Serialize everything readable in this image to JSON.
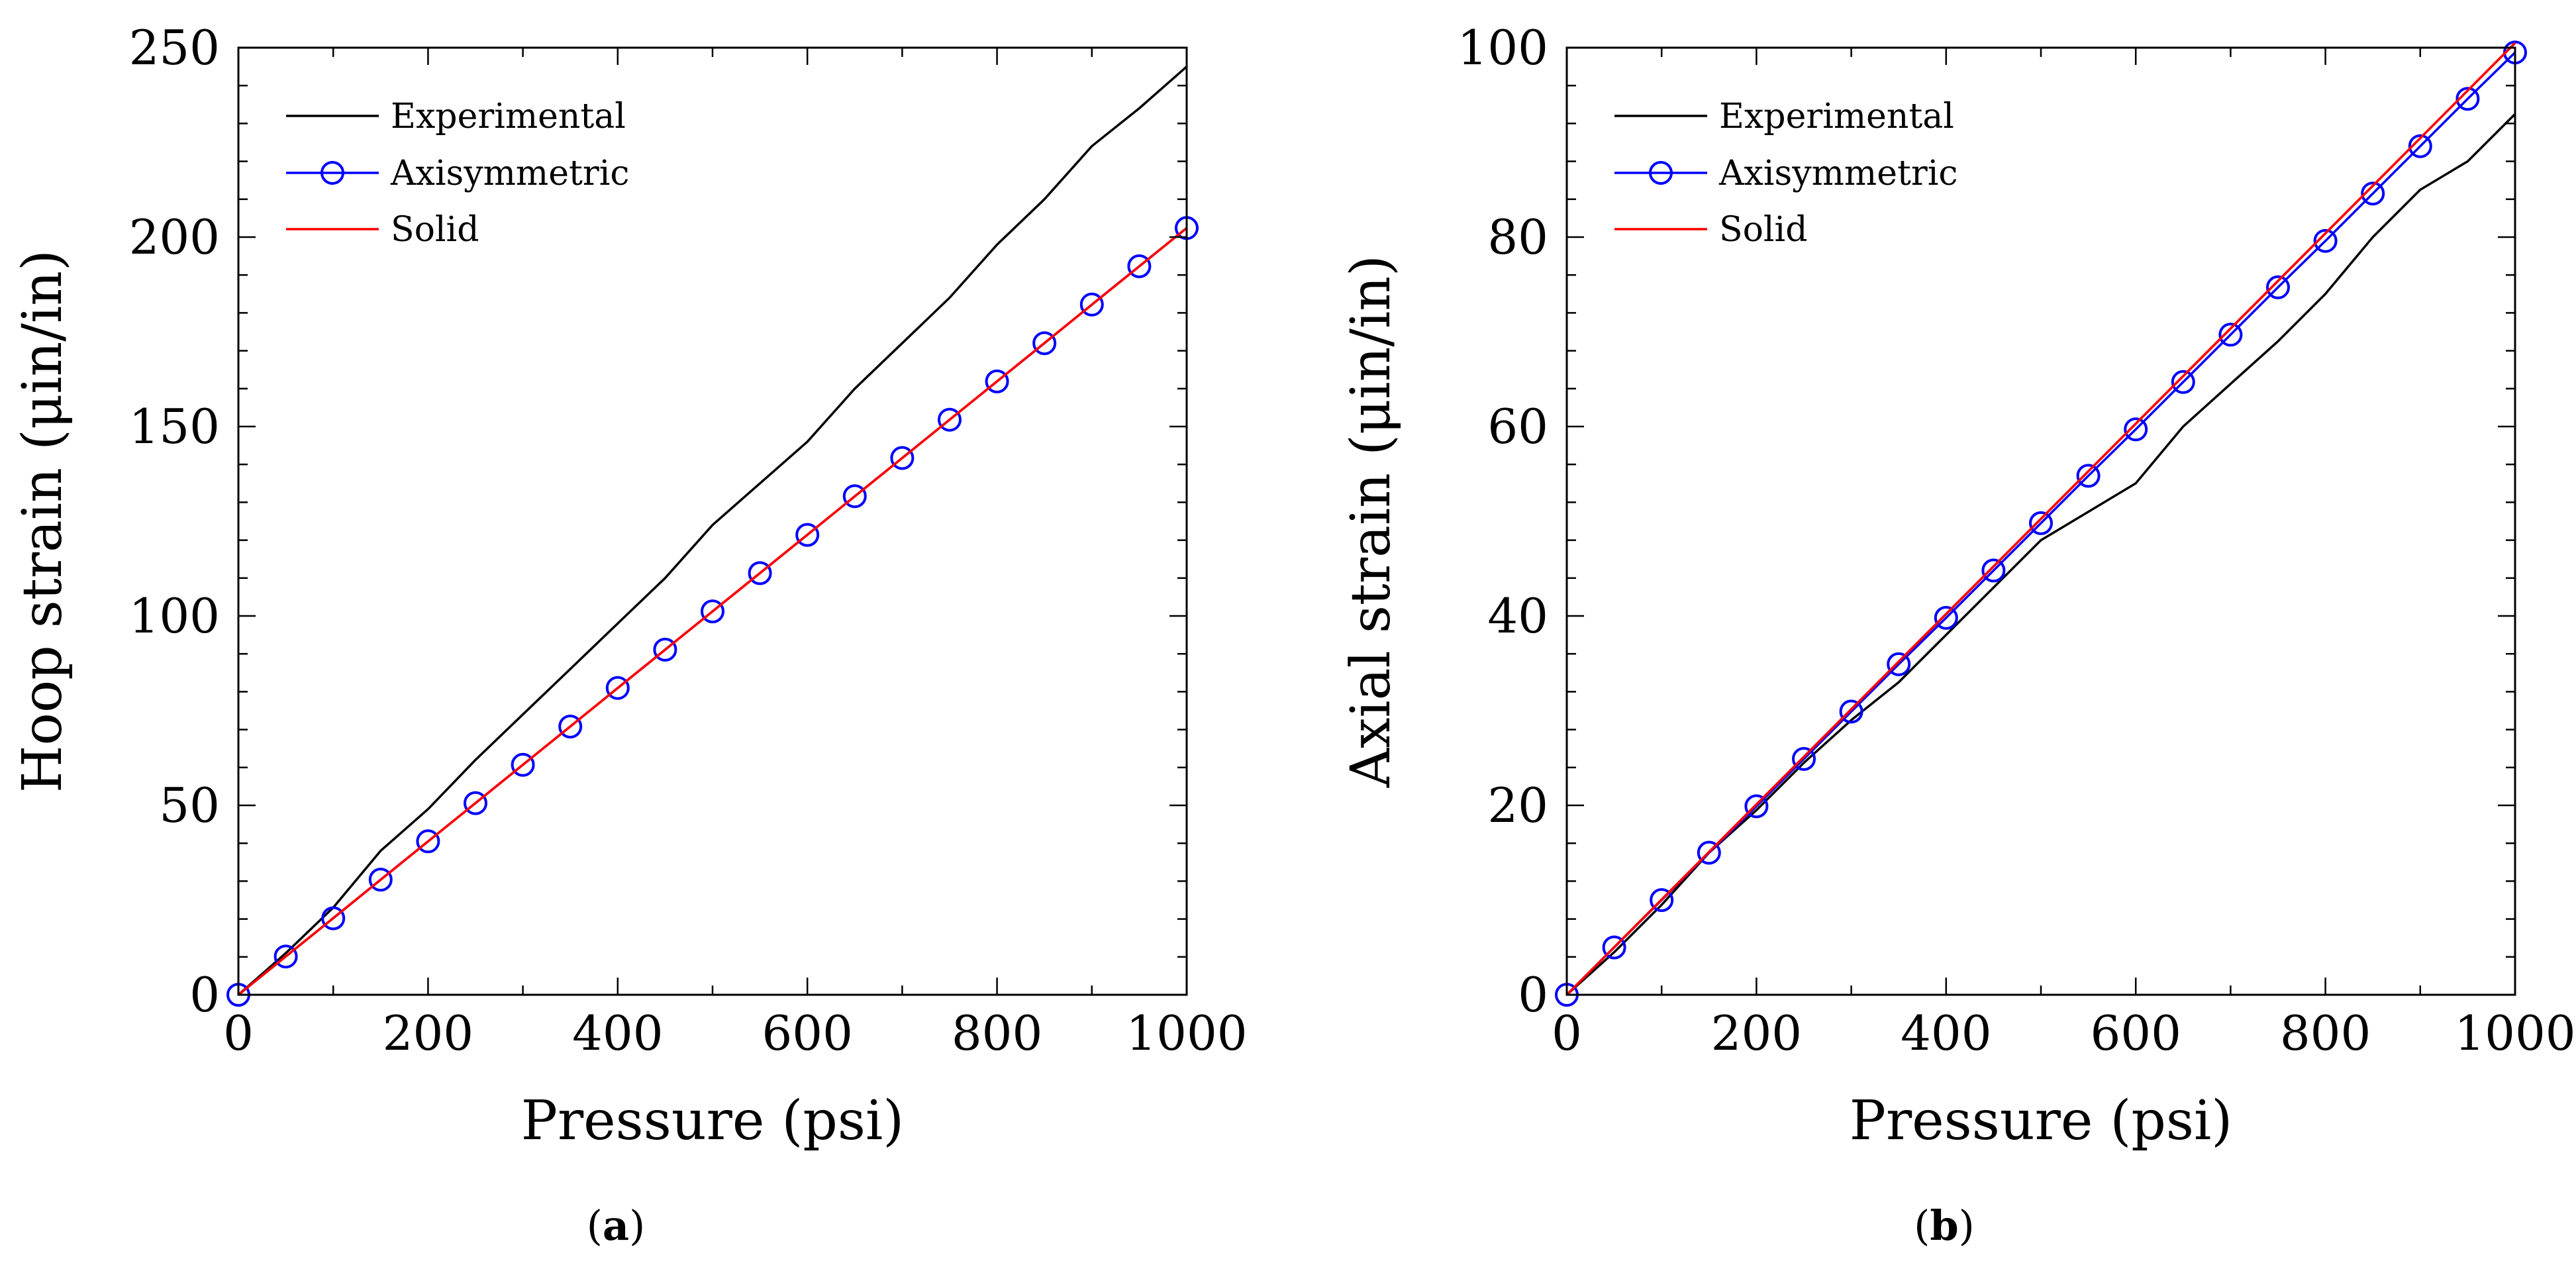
{
  "chart_data": [
    {
      "type": "line",
      "panel_label": "a",
      "xlabel": "Pressure (psi)",
      "ylabel": "Hoop strain (μin/in)",
      "xlim": [
        0,
        1000
      ],
      "ylim": [
        0,
        250
      ],
      "xticks": [
        0,
        200,
        400,
        600,
        800,
        1000
      ],
      "yticks": [
        0,
        50,
        100,
        150,
        200,
        250
      ],
      "legend_position": "top-left",
      "series": [
        {
          "name": "Experimental",
          "color": "#000000",
          "marker": "none",
          "x": [
            0,
            50,
            100,
            150,
            200,
            250,
            300,
            350,
            400,
            450,
            500,
            550,
            600,
            650,
            700,
            750,
            800,
            850,
            900,
            950,
            1000
          ],
          "y": [
            0,
            11,
            23,
            38,
            49,
            62,
            74,
            86,
            98,
            110,
            124,
            135,
            146,
            160,
            172,
            184,
            198,
            210,
            224,
            234,
            245
          ]
        },
        {
          "name": "Axisymmetric",
          "color": "#0000ff",
          "marker": "circle",
          "x": [
            0,
            50,
            100,
            150,
            200,
            250,
            300,
            350,
            400,
            450,
            500,
            550,
            600,
            650,
            700,
            750,
            800,
            850,
            900,
            950,
            1000
          ],
          "y": [
            0,
            10.1,
            20.2,
            30.4,
            40.5,
            50.6,
            60.7,
            70.8,
            81.0,
            91.1,
            101.2,
            111.3,
            121.4,
            131.6,
            141.7,
            151.8,
            161.9,
            172.0,
            182.2,
            192.3,
            202.4
          ]
        },
        {
          "name": "Solid",
          "color": "#ff0000",
          "marker": "none",
          "x": [
            0,
            1000
          ],
          "y": [
            0,
            202.4
          ]
        }
      ]
    },
    {
      "type": "line",
      "panel_label": "b",
      "xlabel": "Pressure (psi)",
      "ylabel": "Axial strain (μin/in)",
      "xlim": [
        0,
        1000
      ],
      "ylim": [
        0,
        100
      ],
      "xticks": [
        0,
        200,
        400,
        600,
        800,
        1000
      ],
      "yticks": [
        0,
        20,
        40,
        60,
        80,
        100
      ],
      "legend_position": "top-left",
      "series": [
        {
          "name": "Experimental",
          "color": "#000000",
          "marker": "none",
          "x": [
            0,
            50,
            100,
            150,
            200,
            250,
            300,
            350,
            400,
            450,
            500,
            550,
            600,
            650,
            700,
            750,
            800,
            850,
            900,
            950,
            1000
          ],
          "y": [
            0,
            4.5,
            9.5,
            15,
            19.5,
            24.5,
            29,
            33,
            38,
            43,
            48,
            51,
            54,
            60,
            64.5,
            69,
            74,
            80,
            85,
            88,
            93
          ]
        },
        {
          "name": "Axisymmetric",
          "color": "#0000ff",
          "marker": "circle",
          "x": [
            0,
            50,
            100,
            150,
            200,
            250,
            300,
            350,
            400,
            450,
            500,
            550,
            600,
            650,
            700,
            750,
            800,
            850,
            900,
            950,
            1000
          ],
          "y": [
            0,
            5,
            10,
            15,
            19.9,
            24.9,
            29.9,
            34.9,
            39.8,
            44.8,
            49.8,
            54.8,
            59.7,
            64.7,
            69.7,
            74.7,
            79.6,
            84.6,
            89.6,
            94.6,
            99.5
          ]
        },
        {
          "name": "Solid",
          "color": "#ff0000",
          "marker": "none",
          "x": [
            0,
            1000
          ],
          "y": [
            0,
            100.5
          ]
        }
      ]
    }
  ]
}
